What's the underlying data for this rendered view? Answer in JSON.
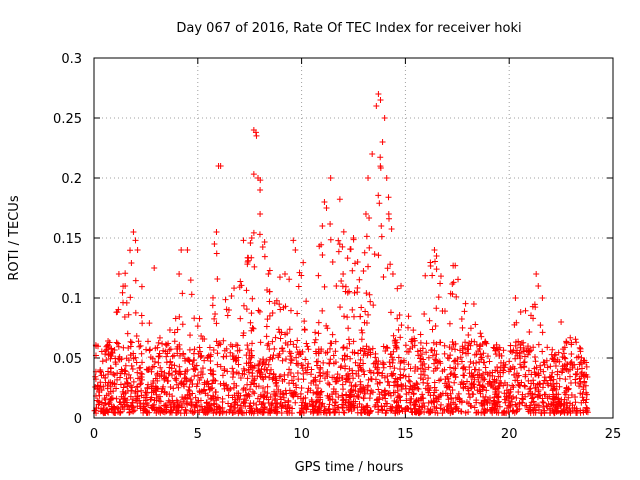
{
  "chart_data": {
    "type": "scatter",
    "title": "Day 067 of 2016, Rate Of TEC Index for receiver hoki",
    "xlabel": "GPS time / hours",
    "ylabel": "ROTI / TECUs",
    "xlim": [
      0,
      25
    ],
    "ylim": [
      0,
      0.3
    ],
    "x_ticks": [
      "0",
      "5",
      "10",
      "15",
      "20",
      "25"
    ],
    "y_ticks": [
      "0",
      "0.05",
      "0.1",
      "0.15",
      "0.2",
      "0.25",
      "0.3"
    ],
    "x_tick_values": [
      0,
      5,
      10,
      15,
      20,
      25
    ],
    "y_tick_values": [
      0,
      0.05,
      0.1,
      0.15,
      0.2,
      0.25,
      0.3
    ],
    "grid": true,
    "marker": "+",
    "series_color": "#ff0000",
    "envelope": {
      "x": [
        0,
        0.5,
        1,
        1.5,
        1.8,
        2,
        2.5,
        3,
        3.5,
        4,
        4.5,
        5,
        5.5,
        6,
        6.5,
        7,
        7.5,
        7.8,
        8,
        8.5,
        9,
        9.5,
        10,
        10.5,
        11,
        11.5,
        12,
        12.5,
        13,
        13.5,
        13.8,
        14,
        14.5,
        15,
        15.5,
        16,
        16.5,
        17,
        17.4,
        18,
        18.5,
        19,
        19.5,
        20,
        20.5,
        21,
        21.5,
        22,
        22.5,
        23,
        23.5,
        23.8
      ],
      "upper": [
        0.06,
        0.05,
        0.08,
        0.12,
        0.155,
        0.15,
        0.08,
        0.07,
        0.06,
        0.09,
        0.14,
        0.09,
        0.05,
        0.155,
        0.1,
        0.12,
        0.14,
        0.24,
        0.2,
        0.12,
        0.12,
        0.11,
        0.14,
        0.08,
        0.17,
        0.2,
        0.17,
        0.15,
        0.13,
        0.22,
        0.27,
        0.25,
        0.12,
        0.1,
        0.06,
        0.12,
        0.14,
        0.08,
        0.127,
        0.1,
        0.09,
        0.07,
        0.06,
        0.05,
        0.1,
        0.08,
        0.12,
        0.06,
        0.05,
        0.08,
        0.05,
        0.04
      ]
    },
    "points": [
      [
        0.1,
        0.06
      ],
      [
        0.3,
        0.04
      ],
      [
        1.2,
        0.12
      ],
      [
        1.5,
        0.11
      ],
      [
        1.9,
        0.155
      ],
      [
        2.0,
        0.148
      ],
      [
        2.1,
        0.14
      ],
      [
        2.9,
        0.125
      ],
      [
        4.1,
        0.12
      ],
      [
        4.2,
        0.14
      ],
      [
        4.5,
        0.14
      ],
      [
        5.8,
        0.145
      ],
      [
        5.9,
        0.155
      ],
      [
        6.0,
        0.21
      ],
      [
        6.1,
        0.21
      ],
      [
        6.5,
        0.09
      ],
      [
        7.2,
        0.148
      ],
      [
        7.4,
        0.13
      ],
      [
        7.7,
        0.24
      ],
      [
        7.8,
        0.238
      ],
      [
        7.9,
        0.2
      ],
      [
        8.0,
        0.19
      ],
      [
        8.0,
        0.17
      ],
      [
        7.6,
        0.15
      ],
      [
        8.4,
        0.12
      ],
      [
        9.2,
        0.12
      ],
      [
        9.6,
        0.148
      ],
      [
        9.7,
        0.14
      ],
      [
        11.0,
        0.16
      ],
      [
        11.1,
        0.18
      ],
      [
        11.2,
        0.175
      ],
      [
        11.4,
        0.2
      ],
      [
        11.5,
        0.13
      ],
      [
        12.0,
        0.12
      ],
      [
        12.5,
        0.15
      ],
      [
        12.7,
        0.13
      ],
      [
        13.1,
        0.17
      ],
      [
        13.2,
        0.2
      ],
      [
        13.4,
        0.22
      ],
      [
        13.6,
        0.26
      ],
      [
        13.7,
        0.27
      ],
      [
        13.8,
        0.265
      ],
      [
        13.9,
        0.23
      ],
      [
        14.0,
        0.25
      ],
      [
        14.1,
        0.2
      ],
      [
        14.2,
        0.17
      ],
      [
        14.4,
        0.12
      ],
      [
        16.4,
        0.14
      ],
      [
        16.5,
        0.135
      ],
      [
        17.3,
        0.127
      ],
      [
        17.4,
        0.127
      ],
      [
        18.3,
        0.095
      ],
      [
        20.3,
        0.1
      ],
      [
        21.3,
        0.12
      ],
      [
        21.4,
        0.11
      ],
      [
        21.6,
        0.1
      ],
      [
        22.5,
        0.08
      ],
      [
        23.5,
        0.045
      ]
    ]
  }
}
